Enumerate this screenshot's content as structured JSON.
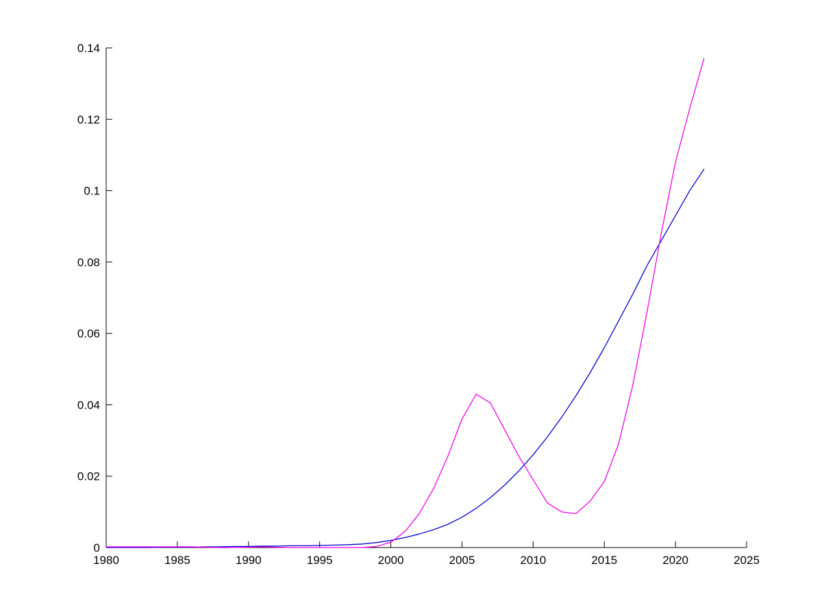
{
  "figure": {
    "background": "#ffffff"
  },
  "chart_data": {
    "type": "line",
    "title": "",
    "xlabel": "",
    "ylabel": "",
    "xlim": [
      1980,
      2025
    ],
    "ylim": [
      0,
      0.14
    ],
    "grid": false,
    "legend": "none",
    "axis_color": "#000000",
    "xticks": [
      1980,
      1985,
      1990,
      1995,
      2000,
      2005,
      2010,
      2015,
      2020,
      2025
    ],
    "xtick_labels": [
      "1980",
      "1985",
      "1990",
      "1995",
      "2000",
      "2005",
      "2010",
      "2015",
      "2020",
      "2025"
    ],
    "yticks": [
      0,
      0.02,
      0.04,
      0.06,
      0.08,
      0.1,
      0.12,
      0.14
    ],
    "ytick_labels": [
      "0",
      "0.02",
      "0.04",
      "0.06",
      "0.08",
      "0.1",
      "0.12",
      "0.14"
    ],
    "x": [
      1980,
      1981,
      1982,
      1983,
      1984,
      1985,
      1986,
      1987,
      1988,
      1989,
      1990,
      1991,
      1992,
      1993,
      1994,
      1995,
      1996,
      1997,
      1998,
      1999,
      2000,
      2001,
      2002,
      2003,
      2004,
      2005,
      2006,
      2007,
      2008,
      2009,
      2010,
      2011,
      2012,
      2013,
      2014,
      2015,
      2016,
      2017,
      2018,
      2019,
      2020,
      2021,
      2022
    ],
    "series": [
      {
        "name": "dark-blue-series",
        "color": "#0000CD",
        "values": [
          0.0,
          0.0,
          0.0,
          0.0,
          0.0001,
          0.0001,
          0.0001,
          0.0002,
          0.0002,
          0.0003,
          0.0003,
          0.0004,
          0.0004,
          0.0005,
          0.0005,
          0.0006,
          0.0007,
          0.0008,
          0.001,
          0.0014,
          0.002,
          0.0028,
          0.0038,
          0.005,
          0.0065,
          0.0085,
          0.011,
          0.014,
          0.0175,
          0.0215,
          0.026,
          0.031,
          0.0365,
          0.0425,
          0.049,
          0.056,
          0.0635,
          0.071,
          0.079,
          0.086,
          0.093,
          0.1,
          0.106
        ]
      },
      {
        "name": "magenta-series",
        "color": "#EE00EE",
        "values": [
          0.0002,
          0.0002,
          0.0002,
          0.0002,
          0.0002,
          0.0002,
          0.0002,
          0.0001,
          0.0,
          0.0,
          0.0001,
          0.0002,
          0.0001,
          0.0,
          0.0,
          0.0,
          0.0,
          0.0,
          0.0,
          0.0003,
          0.0015,
          0.0045,
          0.0095,
          0.0165,
          0.0255,
          0.036,
          0.043,
          0.0405,
          0.033,
          0.0255,
          0.019,
          0.0125,
          0.01,
          0.0095,
          0.013,
          0.0185,
          0.029,
          0.0455,
          0.066,
          0.088,
          0.108,
          0.123,
          0.137
        ]
      }
    ]
  }
}
